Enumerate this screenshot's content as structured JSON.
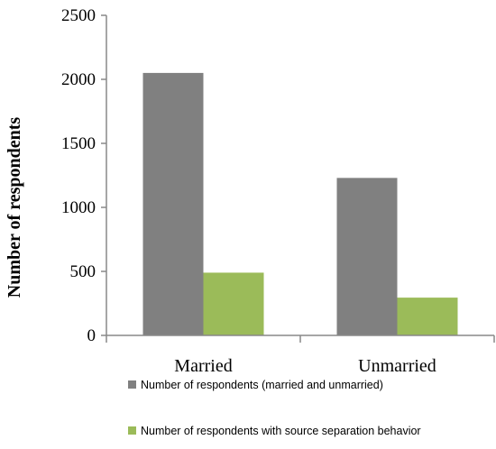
{
  "chart_data": {
    "type": "bar",
    "categories": [
      "Married",
      "Unmarried"
    ],
    "series": [
      {
        "name": "Number of respondents (married and unmarried)",
        "values": [
          2050,
          1230
        ],
        "color": "#808080"
      },
      {
        "name": "Number of respondents with source separation behavior",
        "values": [
          490,
          295
        ],
        "color": "#9BBB59"
      }
    ],
    "ylabel": "Number of respondents",
    "xlabel": "",
    "ylim": [
      0,
      2500
    ],
    "yticks": [
      0,
      500,
      1000,
      1500,
      2000,
      2500
    ],
    "grid": false,
    "legend_position": "bottom"
  }
}
